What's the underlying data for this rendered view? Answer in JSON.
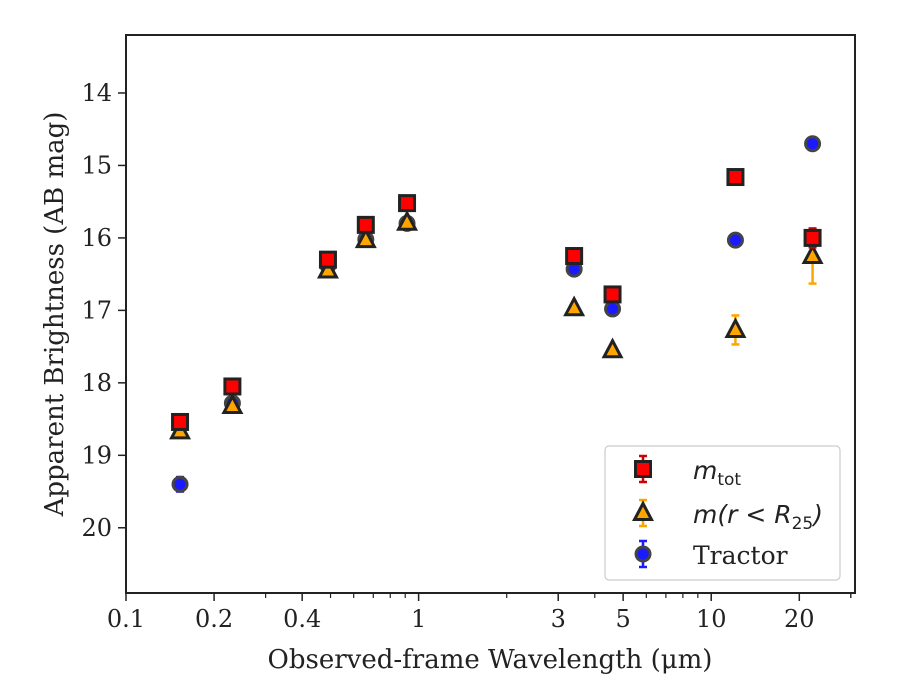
{
  "chart_data": {
    "type": "scatter",
    "xlabel": "Observed-frame Wavelength (μm)",
    "ylabel": "Apparent Brightness (AB mag)",
    "xscale": "log",
    "xlim": [
      0.1,
      31
    ],
    "ylim": [
      20.9,
      13.2
    ],
    "y_inverted": true,
    "x_ticks": [
      0.1,
      0.2,
      0.4,
      1,
      3,
      5,
      10,
      20
    ],
    "x_tick_labels": [
      "0.1",
      "0.2",
      "0.4",
      "1",
      "3",
      "5",
      "10",
      "20"
    ],
    "y_ticks": [
      14,
      15,
      16,
      17,
      18,
      19,
      20
    ],
    "y_tick_labels": [
      "14",
      "15",
      "16",
      "17",
      "18",
      "19",
      "20"
    ],
    "grid": false,
    "legend_position": "bottom-right",
    "series": [
      {
        "name": "m_tot",
        "marker": "square",
        "face_color": "#ff0000",
        "edge_color": "#222222",
        "err_color": "#d00000",
        "x": [
          0.153,
          0.231,
          0.49,
          0.66,
          0.913,
          3.4,
          4.6,
          12.1,
          22.2
        ],
        "y": [
          18.54,
          18.05,
          16.3,
          15.82,
          15.52,
          16.25,
          16.78,
          15.16,
          16.0
        ],
        "yerr": [
          0.05,
          0.04,
          0.02,
          0.02,
          0.02,
          0.03,
          0.04,
          0.06,
          0.13
        ]
      },
      {
        "name": "m(r < R25)",
        "marker": "triangle",
        "face_color": "#ffa500",
        "edge_color": "#222222",
        "err_color": "#ffa500",
        "x": [
          0.153,
          0.231,
          0.49,
          0.66,
          0.913,
          3.4,
          4.6,
          12.1,
          22.2
        ],
        "y": [
          18.67,
          18.32,
          16.45,
          16.03,
          15.79,
          16.97,
          17.55,
          17.27,
          16.25
        ],
        "yerr": [
          0.03,
          0.03,
          0.02,
          0.02,
          0.02,
          0.03,
          0.04,
          0.2,
          0.38
        ]
      },
      {
        "name": "Tractor",
        "marker": "circle",
        "face_color": "#1a1aff",
        "edge_color": "#444444",
        "err_color": "#1a1aff",
        "x": [
          0.153,
          0.231,
          0.49,
          0.66,
          0.913,
          3.4,
          4.6,
          12.1,
          22.2
        ],
        "y": [
          19.4,
          18.28,
          16.38,
          16.02,
          15.8,
          16.43,
          16.98,
          16.03,
          14.7
        ],
        "yerr": [
          0.1,
          0.03,
          0.02,
          0.02,
          0.02,
          0.03,
          0.04,
          0.05,
          0.08
        ]
      }
    ]
  },
  "legend": {
    "entries": [
      {
        "math_main": "m",
        "math_sub": "tot"
      },
      {
        "math_main": "m(r < R",
        "math_sub": "25",
        "math_close": ")"
      },
      {
        "text": "Tractor"
      }
    ]
  }
}
